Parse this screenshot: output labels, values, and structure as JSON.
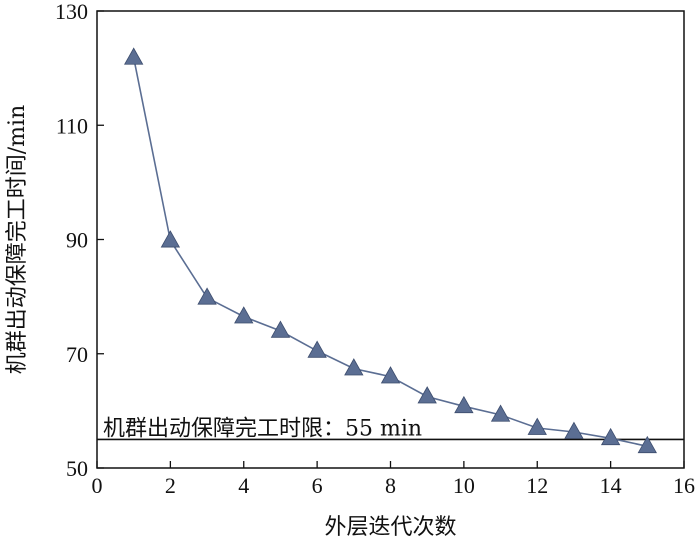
{
  "chart_data": {
    "type": "line",
    "title": "",
    "xlabel": "外层迭代次数",
    "ylabel": "机群出动保障完工时间/min",
    "xlim": [
      0,
      16
    ],
    "ylim": [
      50,
      130
    ],
    "xticks": [
      0,
      2,
      4,
      6,
      8,
      10,
      12,
      14,
      16
    ],
    "yticks": [
      50,
      70,
      90,
      110,
      130
    ],
    "x_tick_labels": [
      "0",
      "2",
      "4",
      "6",
      "8",
      "10",
      "12",
      "14",
      "16"
    ],
    "y_tick_labels": [
      "50",
      "70",
      "90",
      "110",
      "130"
    ],
    "grid": false,
    "series": [
      {
        "marker": "triangle",
        "color": "#5b6e93",
        "x": [
          1,
          2,
          3,
          4,
          5,
          6,
          7,
          8,
          9,
          10,
          11,
          12,
          13,
          14,
          15
        ],
        "y": [
          121.8,
          89.8,
          79.8,
          76.5,
          74.0,
          70.5,
          67.4,
          66.0,
          62.5,
          60.8,
          59.3,
          57.0,
          56.3,
          55.2,
          53.8
        ]
      }
    ],
    "reference_lines": [
      {
        "axis": "y",
        "value": 55,
        "color": "#111111",
        "label": "机群出动保障完工时限：55 min"
      }
    ]
  }
}
